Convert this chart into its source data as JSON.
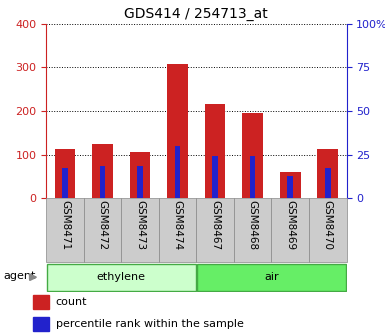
{
  "title": "GDS414 / 254713_at",
  "categories": [
    "GSM8471",
    "GSM8472",
    "GSM8473",
    "GSM8474",
    "GSM8467",
    "GSM8468",
    "GSM8469",
    "GSM8470"
  ],
  "count_values": [
    113,
    125,
    105,
    308,
    215,
    195,
    60,
    112
  ],
  "percentile_values_scaled": [
    70,
    73,
    73,
    120,
    97,
    97,
    50,
    70
  ],
  "left_ylim": [
    0,
    400
  ],
  "right_ylim": [
    0,
    100
  ],
  "left_yticks": [
    0,
    100,
    200,
    300,
    400
  ],
  "right_yticks": [
    0,
    25,
    50,
    75,
    100
  ],
  "right_yticklabels": [
    "0",
    "25",
    "50",
    "75",
    "100%"
  ],
  "bar_color_red": "#cc2222",
  "bar_color_blue": "#2222cc",
  "red_bar_width": 0.55,
  "blue_bar_width": 0.15,
  "group1_label": "ethylene",
  "group2_label": "air",
  "group1_color": "#ccffcc",
  "group2_color": "#66ee66",
  "group_edge_color": "#44aa44",
  "agent_label": "agent",
  "legend_count": "count",
  "legend_percentile": "percentile rank within the sample",
  "left_axis_color": "#cc2222",
  "right_axis_color": "#2222cc",
  "bg_color": "#ffffff",
  "tick_label_bg": "#cccccc",
  "tick_label_fontsize": 7.5
}
